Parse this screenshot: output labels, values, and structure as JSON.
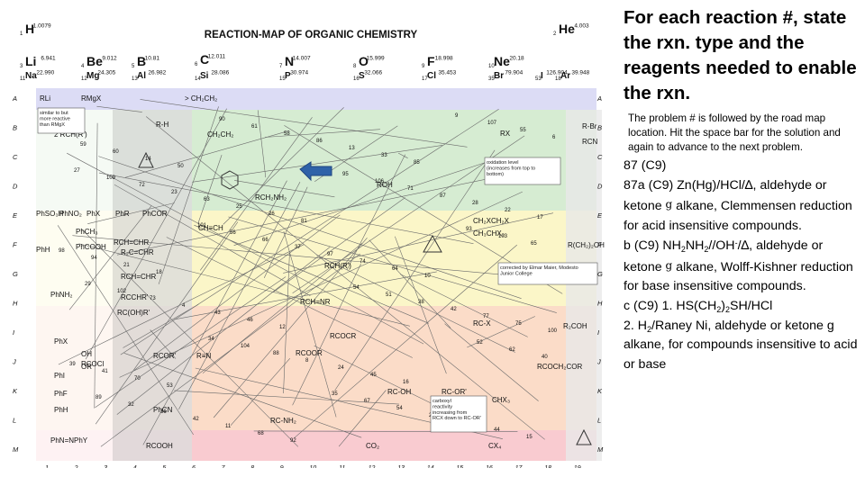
{
  "map": {
    "title": "REACTION-MAP OF ORGANIC CHEMISTRY",
    "elements": [
      {
        "n": "1",
        "s": "H",
        "m": "1.0079"
      },
      {
        "n": "2",
        "s": "He",
        "m": "4.003"
      },
      {
        "n": "3",
        "s": "Li",
        "m": "6.941"
      },
      {
        "n": "4",
        "s": "Be",
        "m": "9.012"
      },
      {
        "n": "5",
        "s": "B",
        "m": "10.81"
      },
      {
        "n": "6",
        "s": "C",
        "m": "12.011"
      },
      {
        "n": "7",
        "s": "N",
        "m": "14.007"
      },
      {
        "n": "8",
        "s": "O",
        "m": "15.999"
      },
      {
        "n": "9",
        "s": "F",
        "m": "18.998"
      },
      {
        "n": "10",
        "s": "Ne",
        "m": "20.18"
      },
      {
        "n": "11",
        "s": "Na",
        "m": "22.990"
      },
      {
        "n": "12",
        "s": "Mg",
        "m": "24.305"
      },
      {
        "n": "13",
        "s": "Al",
        "m": "26.982"
      },
      {
        "n": "14",
        "s": "Si",
        "m": "28.086"
      },
      {
        "n": "15",
        "s": "P",
        "m": "30.974"
      },
      {
        "n": "16",
        "s": "S",
        "m": "32.066"
      },
      {
        "n": "17",
        "s": "Cl",
        "m": "35.453"
      },
      {
        "n": "35",
        "s": "Br",
        "m": "79.904"
      },
      {
        "n": "53",
        "s": "I",
        "m": "126.904"
      },
      {
        "n": "18",
        "s": "Ar",
        "m": "39.948"
      }
    ],
    "row_labels": [
      "A",
      "B",
      "C",
      "D",
      "E",
      "F",
      "G",
      "H",
      "I",
      "J",
      "K",
      "L",
      "M"
    ],
    "col_labels": [
      "1",
      "2",
      "3",
      "4",
      "5",
      "6",
      "7",
      "8",
      "9",
      "10",
      "11",
      "12",
      "13",
      "14",
      "15",
      "16",
      "17",
      "18",
      "19"
    ],
    "compounds": [
      "RLi",
      "RMgX",
      "> CH₂CH₂",
      "R-H",
      "2 RCH(R')",
      "CH₂CH₂",
      "RX",
      "R-Br",
      "RCN",
      "ROH",
      "RCH₂NH₂",
      "PhSO₃H",
      "PhNO₂",
      "PhX",
      "PhR",
      "PhCOR",
      "CH≡CH",
      "CH₂XCH₂X",
      "CH₃CHX₂",
      "R(CH₂)₂OH",
      "PhCH₃",
      "PhCOOH",
      "RCH=CHR",
      "R₂C=CHR",
      "RCH=CHR",
      "RCCHR'",
      "PhH",
      "PhNH₂",
      "RCH(R')",
      "RCH=NR",
      "RCOCR",
      "RC-X",
      "R₂COH",
      "PhX",
      "PhI",
      "PhF",
      "PhH",
      "RCOR'",
      "R≡N",
      "RCOOR",
      "RC-OH",
      "RC-OR'",
      "RCOCH₂COR",
      "PhCN",
      "RC-NH₂",
      "CHX₃",
      "RCOOH",
      "CO₂",
      "CX₄",
      "PhN=NPhY",
      "OH",
      "OR",
      "RCOCl",
      "RC(OH)R'"
    ],
    "notes": [
      "similar to but more reactive than RMgX",
      "oxidation level (increases from top to bottom)",
      "carboxyl reactivity increasing from RCX down to RC-OR'",
      "corrected by Elmar Maier, Modesto Junior College"
    ],
    "route_numbers": [
      "3",
      "50",
      "81",
      "10",
      "100",
      "53",
      "92",
      "85",
      "17",
      "18",
      "12",
      "16",
      "15",
      "14",
      "26",
      "64",
      "75",
      "70",
      "68",
      "33",
      "22",
      "21",
      "46",
      "45",
      "44",
      "60",
      "25",
      "74",
      "77",
      "41",
      "11",
      "13",
      "28",
      "94",
      "43",
      "24",
      "69",
      "59",
      "63",
      "97",
      "42",
      "39",
      "42",
      "86",
      "87",
      "98",
      "4",
      "8",
      "2",
      "6",
      "23",
      "37",
      "38",
      "40",
      "36",
      "58",
      "71",
      "65",
      "73",
      "88",
      "54",
      "55",
      "72",
      "66",
      "51",
      "62",
      "32",
      "61",
      "106",
      "103",
      "102",
      "104",
      "67",
      "107",
      "109",
      "56",
      "54",
      "52",
      "89",
      "90",
      "95",
      "93",
      "29",
      "34",
      "35",
      "9",
      "27",
      "101"
    ]
  },
  "side": {
    "title": "For each reaction #, state the rxn. type and the reagents needed to enable the rxn.",
    "hint": "The problem # is followed by the road map location.  Hit the space bar for the solution and again to advance to the next problem.",
    "problem": "87  (C9)",
    "a_1": "87a (C9)  Zn(Hg)/HCl/∆, aldehyde or ketone ",
    "a_arrow": "g",
    "a_2": " alkane, Clemmensen reduction for acid insensitive compounds.",
    "b_1": "b (C9)  NH",
    "b_s1": "2",
    "b_2": "NH",
    "b_s2": "2",
    "b_3": "//OH",
    "b_sup": "-",
    "b_4": "/∆, aldehyde or ketone ",
    "b_arrow": "g",
    "b_5": " alkane, Wolff-Kishner reduction for base insensitive compounds.",
    "c_1": "c (C9)  1. HS(CH",
    "c_s1": "2",
    "c_2": ")",
    "c_s2": "2",
    "c_3": "SH/HCl",
    "c2_1": "2. H",
    "c2_s1": "2",
    "c2_2": "/Raney Ni, aldehyde or ketone g alkane,  for compounds insensitive to acid or base"
  },
  "colors": {
    "band_blue": "#dcdcf5",
    "band_green": "#d6ecd2",
    "band_yellow": "#fbf6c8",
    "band_orange": "#fbdcc8",
    "band_pink": "#f9cbd0",
    "gray_column": "#dcdcdc",
    "arrow": "#2f62a8"
  }
}
